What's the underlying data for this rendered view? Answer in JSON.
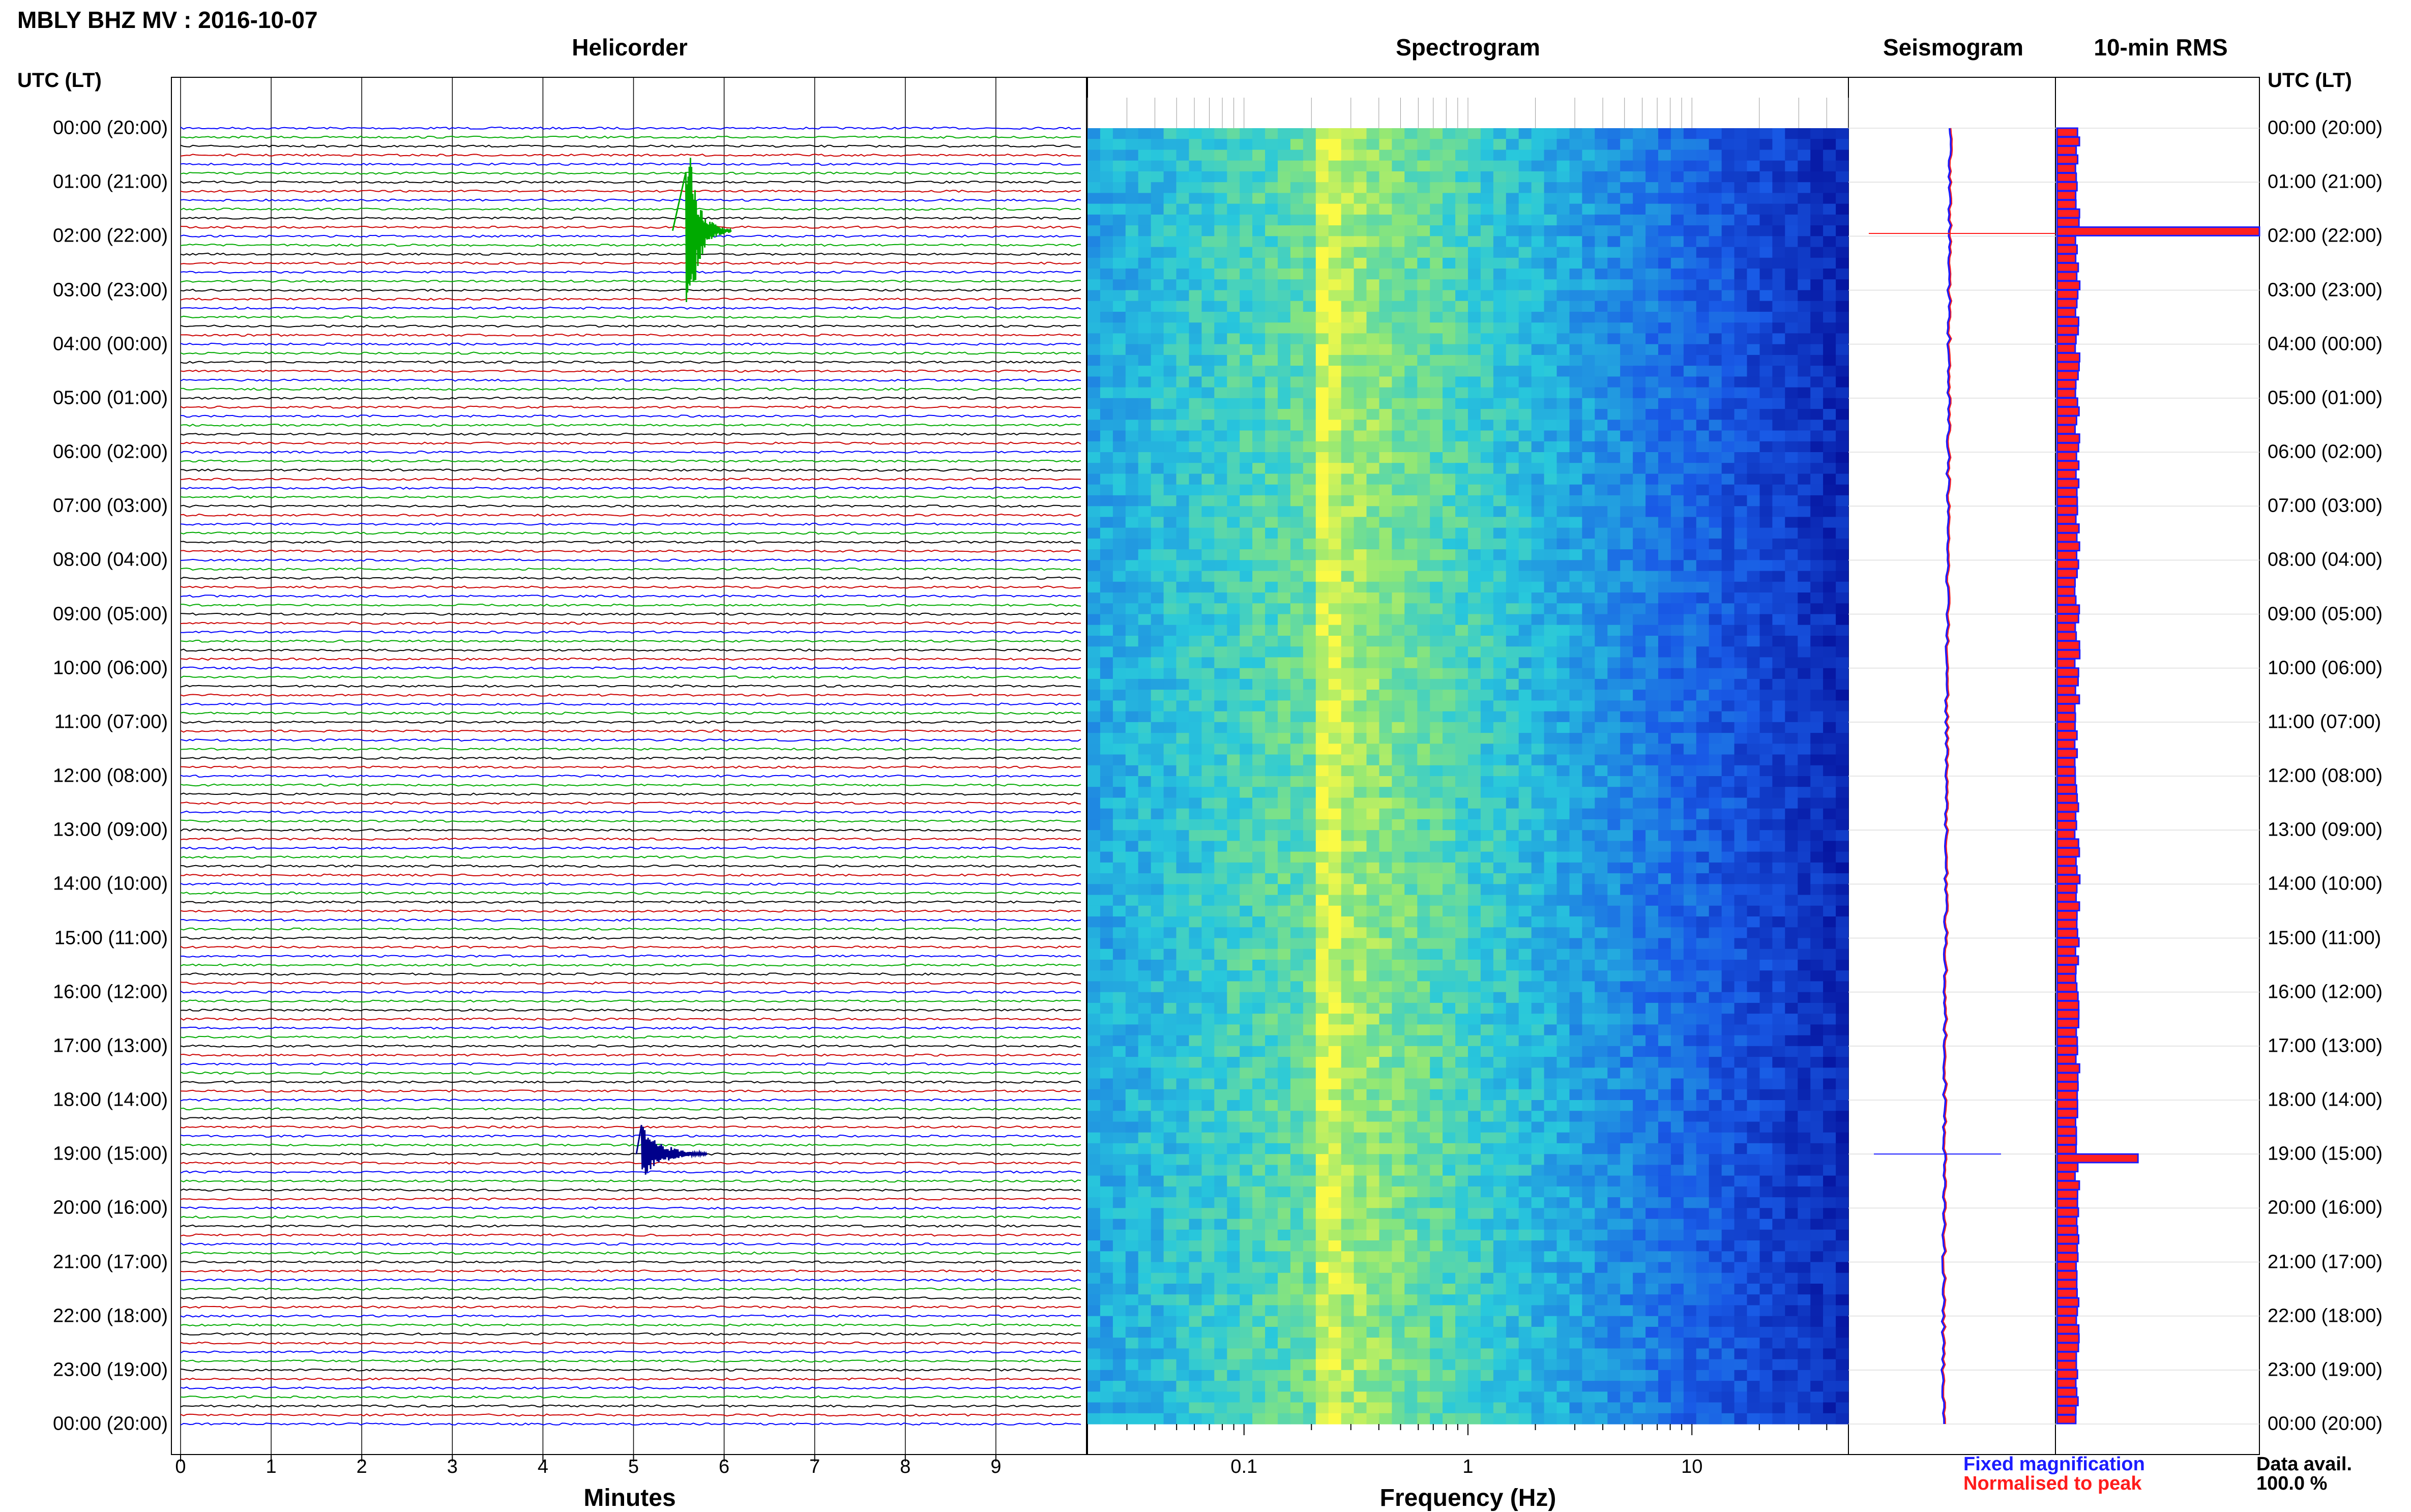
{
  "header": {
    "title": "MBLY BHZ MV : 2016-10-07",
    "utc_label_left": "UTC (LT)",
    "utc_label_right": "UTC (LT)"
  },
  "panels": {
    "helicorder": "Helicorder",
    "spectrogram": "Spectrogram",
    "seismogram": "Seismogram",
    "rms": "10-min RMS"
  },
  "time_labels": [
    "00:00 (20:00)",
    "01:00 (21:00)",
    "02:00 (22:00)",
    "03:00 (23:00)",
    "04:00 (00:00)",
    "05:00 (01:00)",
    "06:00 (02:00)",
    "07:00 (03:00)",
    "08:00 (04:00)",
    "09:00 (05:00)",
    "10:00 (06:00)",
    "11:00 (07:00)",
    "12:00 (08:00)",
    "13:00 (09:00)",
    "14:00 (10:00)",
    "15:00 (11:00)",
    "16:00 (12:00)",
    "17:00 (13:00)",
    "18:00 (14:00)",
    "19:00 (15:00)",
    "20:00 (16:00)",
    "21:00 (17:00)",
    "22:00 (18:00)",
    "23:00 (19:00)",
    "00:00 (20:00)"
  ],
  "helicorder_axis": {
    "label": "Minutes",
    "ticks": [
      "0",
      "1",
      "2",
      "3",
      "4",
      "5",
      "6",
      "7",
      "8",
      "9"
    ]
  },
  "spectrogram_axis": {
    "label": "Frequency (Hz)",
    "ticks": [
      "0.1",
      "1",
      "10"
    ],
    "scale": "log"
  },
  "legend": {
    "fixed": "Fixed magnification",
    "normalised": "Normalised to peak",
    "fixed_color": "#1c1cff",
    "normalised_color": "#ff1c1c"
  },
  "data_availability": {
    "label": "Data avail.",
    "value": "100.0 %"
  },
  "colors": {
    "trace_cycle": [
      "#0000ff",
      "#00aa00",
      "#000000",
      "#cc0000"
    ],
    "spectro_low": "#00008b",
    "spectro_mid": "#1f77e8",
    "spectro_high": "#ffff40"
  },
  "chart_data": [
    {
      "type": "line",
      "title": "Helicorder",
      "xlabel": "Minutes",
      "xlim": [
        0,
        10
      ],
      "ylim": [
        0,
        24
      ],
      "rows_per_hour": 6,
      "events": [
        {
          "hour": 1.9,
          "minute": 5.6,
          "amplitude": "large",
          "color": "#00aa00"
        },
        {
          "hour": 19.0,
          "minute": 5.2,
          "amplitude": "medium",
          "color": "#00008b"
        }
      ]
    },
    {
      "type": "heatmap",
      "title": "Spectrogram",
      "xlabel": "Frequency (Hz)",
      "xscale": "log",
      "xlim": [
        0.02,
        50
      ],
      "peak_frequency_hz": 0.25
    },
    {
      "type": "line",
      "title": "Seismogram",
      "series": [
        {
          "name": "Fixed magnification",
          "values": []
        },
        {
          "name": "Normalised to peak",
          "values": []
        }
      ]
    },
    {
      "type": "bar",
      "title": "10-min RMS",
      "bins_per_hour": 6,
      "baseline": 1.0,
      "peaks": [
        {
          "hour": 1.83,
          "value": 10.0
        },
        {
          "hour": 19.0,
          "value": 4.0
        }
      ]
    }
  ]
}
